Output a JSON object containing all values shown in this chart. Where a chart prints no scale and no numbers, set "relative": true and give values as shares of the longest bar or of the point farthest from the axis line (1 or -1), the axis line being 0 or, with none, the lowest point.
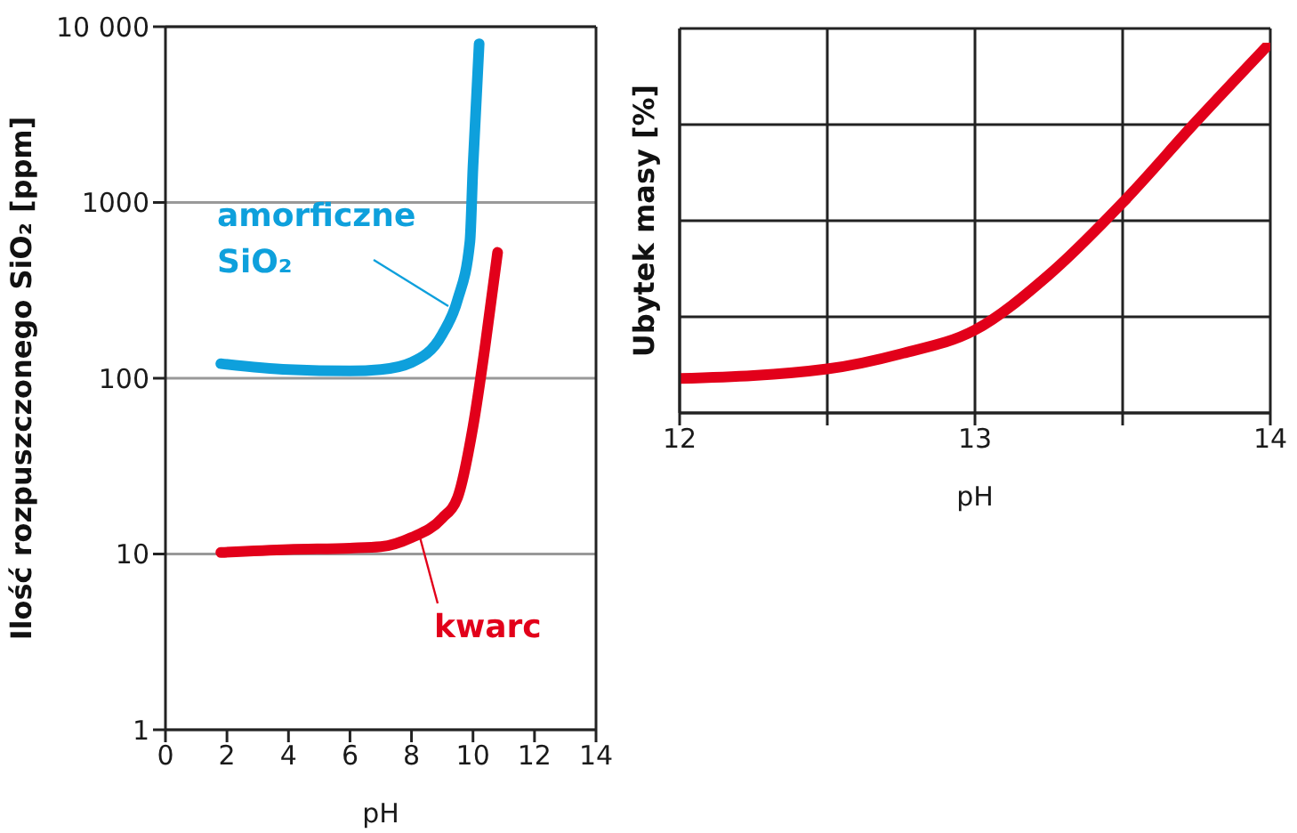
{
  "chart_data": [
    {
      "type": "line",
      "ylabel": "Ilość rozpuszczonego SiO₂ [ppm]",
      "xlabel": "pH",
      "log": "y",
      "grid": "y",
      "xlim": [
        0,
        14
      ],
      "xticks": [
        0,
        2,
        4,
        6,
        8,
        10,
        12,
        14
      ],
      "ylim": [
        1,
        10000
      ],
      "yticks": [
        1,
        10,
        100,
        1000,
        {
          "value": 10000,
          "label": "10 000"
        }
      ],
      "series": [
        {
          "name": "amorficzne SiO₂",
          "color": "#0ea0dc",
          "x": [
            1.8,
            4,
            6,
            7,
            8,
            9,
            9.5,
            9.9,
            10,
            10.2
          ],
          "values": [
            121,
            112,
            110,
            112,
            123,
            178,
            280,
            600,
            1600,
            8000
          ]
        },
        {
          "name": "kwarc",
          "color": "#e2001a",
          "x": [
            1.8,
            4,
            6,
            7,
            8,
            9,
            9.5,
            10,
            10.4,
            10.8
          ],
          "values": [
            10.2,
            10.6,
            10.8,
            11,
            12.4,
            16,
            21,
            53,
            155,
            520
          ]
        }
      ]
    },
    {
      "type": "line",
      "ylabel": "Ubytek masy [%]",
      "xlabel": "pH",
      "relative": true,
      "grid": true,
      "xlim": [
        12,
        14
      ],
      "xticks": [
        12,
        {
          "value": 12.5,
          "label": null
        },
        13,
        {
          "value": 13.5,
          "label": null
        },
        14
      ],
      "series": [
        {
          "color": "#e2001a",
          "x": [
            12,
            12.5,
            12.75,
            13,
            13.25,
            13.5,
            13.75,
            14
          ],
          "values": [
            0.093,
            0.119,
            0.16,
            0.224,
            0.373,
            0.568,
            0.788,
            1
          ]
        }
      ]
    }
  ]
}
